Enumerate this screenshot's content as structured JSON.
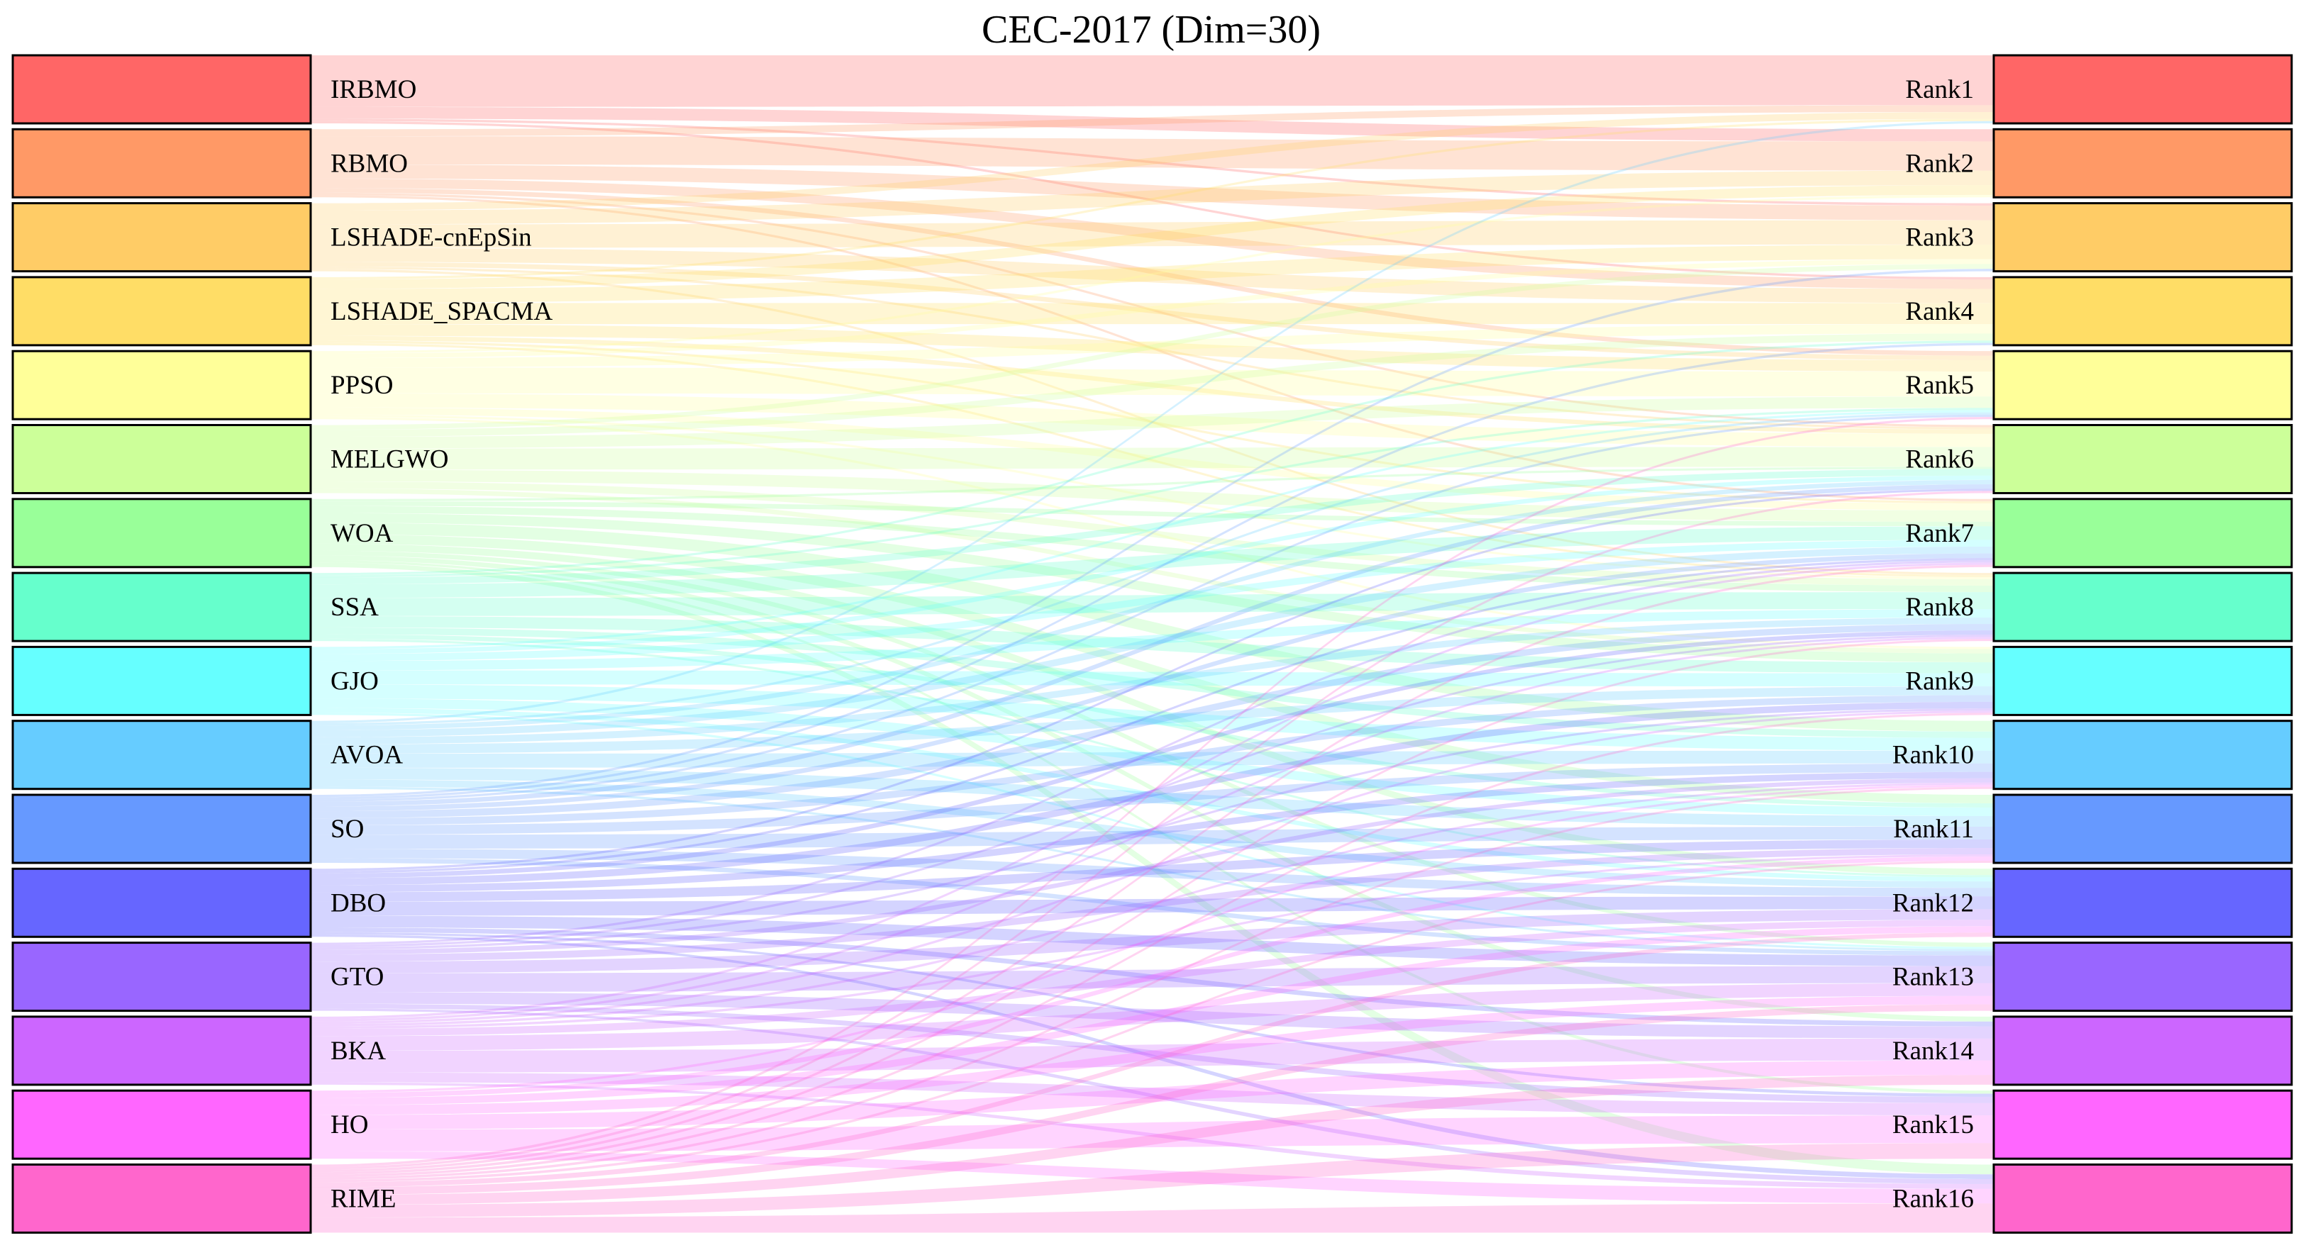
{
  "chart_data": {
    "type": "sankey",
    "title": "CEC-2017 (Dim=30)",
    "sources": [
      {
        "name": "IRBMO",
        "color": "#ff6666"
      },
      {
        "name": "RBMO",
        "color": "#ff9966"
      },
      {
        "name": "LSHADE-cnEpSin",
        "color": "#ffcc66"
      },
      {
        "name": "LSHADE_SPACMA",
        "color": "#ffdd66"
      },
      {
        "name": "PPSO",
        "color": "#ffff99"
      },
      {
        "name": "MELGWO",
        "color": "#ccff99"
      },
      {
        "name": "WOA",
        "color": "#99ff99"
      },
      {
        "name": "SSA",
        "color": "#66ffcc"
      },
      {
        "name": "GJO",
        "color": "#66ffff"
      },
      {
        "name": "AVOA",
        "color": "#66ccff"
      },
      {
        "name": "SO",
        "color": "#6699ff"
      },
      {
        "name": "DBO",
        "color": "#6666ff"
      },
      {
        "name": "GTO",
        "color": "#9966ff"
      },
      {
        "name": "BKA",
        "color": "#cc66ff"
      },
      {
        "name": "HO",
        "color": "#ff66ff"
      },
      {
        "name": "RIME",
        "color": "#ff66cc"
      }
    ],
    "targets": [
      {
        "name": "Rank1",
        "color": "#ff6666"
      },
      {
        "name": "Rank2",
        "color": "#ff9966"
      },
      {
        "name": "Rank3",
        "color": "#ffcc66"
      },
      {
        "name": "Rank4",
        "color": "#ffdd66"
      },
      {
        "name": "Rank5",
        "color": "#ffff99"
      },
      {
        "name": "Rank6",
        "color": "#ccff99"
      },
      {
        "name": "Rank7",
        "color": "#99ff99"
      },
      {
        "name": "Rank8",
        "color": "#66ffcc"
      },
      {
        "name": "Rank9",
        "color": "#66ffff"
      },
      {
        "name": "Rank10",
        "color": "#66ccff"
      },
      {
        "name": "Rank11",
        "color": "#6699ff"
      },
      {
        "name": "Rank12",
        "color": "#6666ff"
      },
      {
        "name": "Rank13",
        "color": "#9966ff"
      },
      {
        "name": "Rank14",
        "color": "#cc66ff"
      },
      {
        "name": "Rank15",
        "color": "#ff66ff"
      },
      {
        "name": "Rank16",
        "color": "#ff66cc"
      }
    ],
    "links": [
      [
        22,
        5,
        1,
        1,
        0,
        0,
        0,
        0,
        0,
        0,
        0,
        0,
        0,
        0,
        0,
        0
      ],
      [
        3,
        12,
        6,
        4,
        2,
        1,
        1,
        0,
        0,
        0,
        0,
        0,
        0,
        0,
        0,
        0
      ],
      [
        3,
        6,
        10,
        6,
        2,
        1,
        0,
        1,
        0,
        0,
        0,
        0,
        0,
        0,
        0,
        0
      ],
      [
        1,
        4,
        6,
        9,
        5,
        2,
        1,
        1,
        0,
        0,
        0,
        0,
        0,
        0,
        0,
        0
      ],
      [
        0,
        1,
        2,
        4,
        11,
        6,
        3,
        1,
        1,
        0,
        0,
        0,
        0,
        0,
        0,
        0
      ],
      [
        0,
        0,
        2,
        3,
        5,
        9,
        5,
        3,
        2,
        0,
        0,
        0,
        0,
        0,
        0,
        0
      ],
      [
        0,
        0,
        0,
        0,
        0,
        1,
        2,
        3,
        4,
        5,
        4,
        3,
        2,
        2,
        1,
        2
      ],
      [
        0,
        0,
        0,
        1,
        1,
        3,
        6,
        8,
        5,
        3,
        2,
        1,
        0,
        0,
        0,
        0
      ],
      [
        0,
        0,
        0,
        0,
        1,
        2,
        3,
        4,
        6,
        6,
        4,
        2,
        1,
        0,
        0,
        0
      ],
      [
        1,
        0,
        0,
        0,
        1,
        2,
        3,
        3,
        4,
        6,
        5,
        3,
        1,
        0,
        0,
        0
      ],
      [
        0,
        0,
        1,
        1,
        1,
        2,
        2,
        3,
        3,
        4,
        6,
        4,
        2,
        0,
        0,
        0
      ],
      [
        0,
        0,
        0,
        0,
        0,
        1,
        1,
        2,
        3,
        3,
        4,
        6,
        5,
        2,
        1,
        1
      ],
      [
        0,
        0,
        0,
        0,
        0,
        0,
        1,
        1,
        1,
        2,
        3,
        5,
        8,
        5,
        2,
        1
      ],
      [
        0,
        0,
        0,
        0,
        0,
        0,
        1,
        1,
        1,
        1,
        1,
        3,
        6,
        9,
        4,
        1
      ],
      [
        0,
        0,
        0,
        0,
        0,
        0,
        0,
        0,
        0,
        1,
        2,
        3,
        4,
        6,
        9,
        3
      ],
      [
        0,
        0,
        0,
        0,
        1,
        1,
        1,
        1,
        1,
        1,
        1,
        2,
        3,
        4,
        5,
        6
      ]
    ]
  }
}
